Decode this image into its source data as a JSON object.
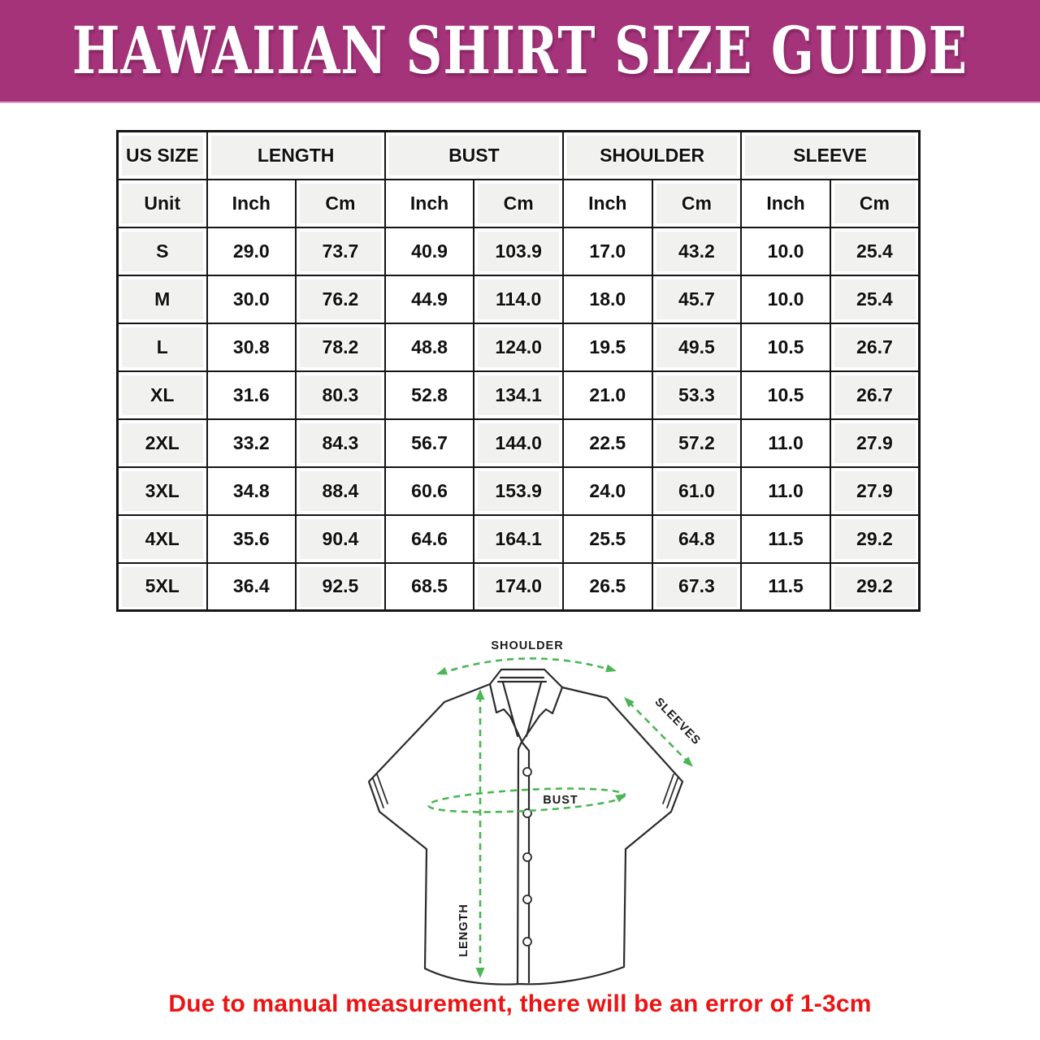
{
  "banner": {
    "title": "HAWAIIAN SHIRT SIZE GUIDE",
    "bg_color": "#a43379",
    "text_color": "#ffffff"
  },
  "table": {
    "group_headers": [
      "US SIZE",
      "LENGTH",
      "BUST",
      "SHOULDER",
      "SLEEVE"
    ],
    "unit_row": [
      "Unit",
      "Inch",
      "Cm",
      "Inch",
      "Cm",
      "Inch",
      "Cm",
      "Inch",
      "Cm"
    ],
    "rows": [
      {
        "size": "S",
        "values": [
          "29.0",
          "73.7",
          "40.9",
          "103.9",
          "17.0",
          "43.2",
          "10.0",
          "25.4"
        ]
      },
      {
        "size": "M",
        "values": [
          "30.0",
          "76.2",
          "44.9",
          "114.0",
          "18.0",
          "45.7",
          "10.0",
          "25.4"
        ]
      },
      {
        "size": "L",
        "values": [
          "30.8",
          "78.2",
          "48.8",
          "124.0",
          "19.5",
          "49.5",
          "10.5",
          "26.7"
        ]
      },
      {
        "size": "XL",
        "values": [
          "31.6",
          "80.3",
          "52.8",
          "134.1",
          "21.0",
          "53.3",
          "10.5",
          "26.7"
        ]
      },
      {
        "size": "2XL",
        "values": [
          "33.2",
          "84.3",
          "56.7",
          "144.0",
          "22.5",
          "57.2",
          "11.0",
          "27.9"
        ]
      },
      {
        "size": "3XL",
        "values": [
          "34.8",
          "88.4",
          "60.6",
          "153.9",
          "24.0",
          "61.0",
          "11.0",
          "27.9"
        ]
      },
      {
        "size": "4XL",
        "values": [
          "35.6",
          "90.4",
          "64.6",
          "164.1",
          "25.5",
          "64.8",
          "11.5",
          "29.2"
        ]
      },
      {
        "size": "5XL",
        "values": [
          "36.4",
          "92.5",
          "68.5",
          "174.0",
          "26.5",
          "67.3",
          "11.5",
          "29.2"
        ]
      }
    ]
  },
  "diagram": {
    "shoulder_label": "SHOULDER",
    "sleeves_label": "SLEEVES",
    "bust_label": "BUST",
    "length_label": "LENGTH",
    "accent_color": "#4cb655"
  },
  "footer": {
    "note": "Due to manual measurement, there will be an error of 1-3cm",
    "color": "#ee1212"
  }
}
